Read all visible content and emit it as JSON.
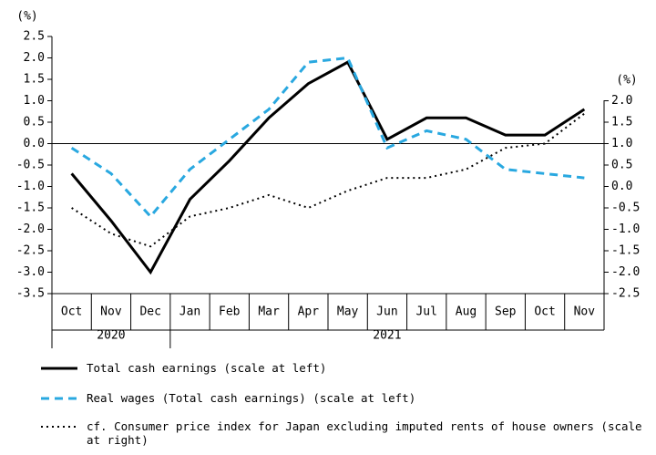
{
  "chart_data": {
    "type": "line",
    "y_unit": "(%)",
    "y2_unit": "(%)",
    "categories": [
      "Oct",
      "Nov",
      "Dec",
      "Jan",
      "Feb",
      "Mar",
      "Apr",
      "May",
      "Jun",
      "Jul",
      "Aug",
      "Sep",
      "Oct",
      "Nov"
    ],
    "year_groups": [
      {
        "label": "2020",
        "span": 3
      },
      {
        "label": "2021",
        "span": 11
      }
    ],
    "series": [
      {
        "name": "Total cash earnings (scale at left)",
        "color": "#000000",
        "dash": "solid",
        "values": [
          -0.7,
          -1.8,
          -3.0,
          -1.3,
          -0.4,
          0.6,
          1.4,
          1.9,
          0.1,
          0.6,
          0.6,
          0.2,
          0.2,
          0.8
        ]
      },
      {
        "name": "Real wages (Total cash earnings) (scale at left)",
        "color": "#29a8e0",
        "dash": "dashed",
        "values": [
          -0.1,
          -0.7,
          -1.7,
          -0.6,
          0.1,
          0.8,
          1.9,
          2.0,
          -0.1,
          0.3,
          0.1,
          -0.6,
          -0.7,
          -0.8
        ]
      },
      {
        "name": "cf. Consumer price index for Japan excluding imputed rents of house owners (scale at right)",
        "color": "#000000",
        "dash": "dotted",
        "axis": "y2",
        "values": [
          -0.5,
          -1.1,
          -1.4,
          -0.7,
          -0.5,
          -0.2,
          -0.5,
          -0.1,
          0.2,
          0.2,
          0.4,
          0.9,
          1.0,
          1.7
        ]
      }
    ],
    "ylim": [
      -3.5,
      2.5
    ],
    "yticks": [
      2.5,
      {
        "value": 2,
        "label": "2.0"
      },
      1.5,
      {
        "value": 1,
        "label": "1.0"
      },
      0.5,
      {
        "value": 0,
        "label": "0.0"
      },
      -0.5,
      {
        "value": -1,
        "label": "-1.0"
      },
      -1.5,
      {
        "value": -2,
        "label": "-2.0"
      },
      -2.5,
      {
        "value": -3,
        "label": "-3.0"
      },
      -3.5
    ],
    "y2lim": [
      -2.5,
      3.5
    ],
    "y2ticks": [
      {
        "value": 2,
        "label": "2.0"
      },
      1.5,
      {
        "value": 1,
        "label": "1.0"
      },
      0.5,
      {
        "value": 0,
        "label": "0.0"
      },
      -0.5,
      {
        "value": -1,
        "label": "-1.0"
      },
      -1.5,
      {
        "value": -2,
        "label": "-2.0"
      },
      -2.5
    ]
  }
}
